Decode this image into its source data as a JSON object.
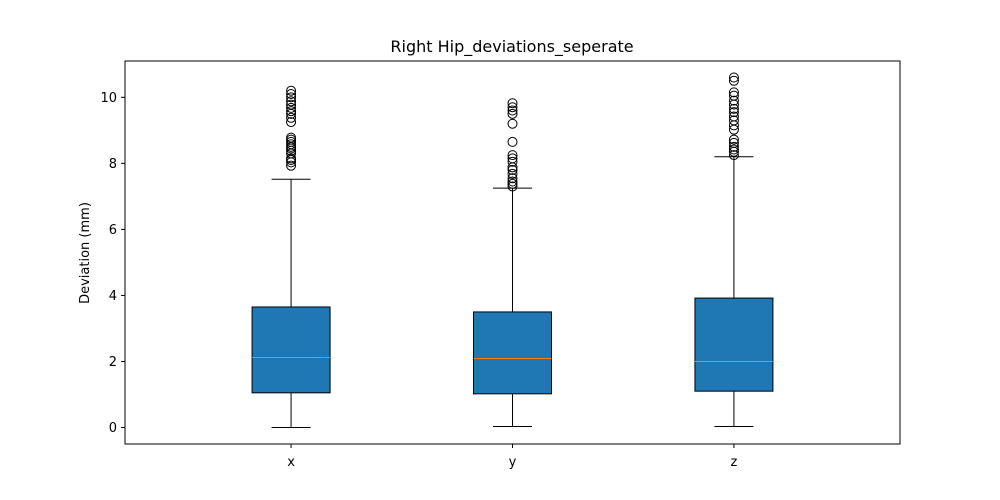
{
  "chart_data": {
    "type": "box",
    "title": "Right Hip_deviations_seperate",
    "xlabel": "",
    "ylabel": "Deviation (mm)",
    "ylim": [
      -0.5,
      11.1
    ],
    "yticks": [
      0,
      2,
      4,
      6,
      8,
      10
    ],
    "grid": false,
    "colors": {
      "box_fill": "#1f77b4",
      "median": "#ff7f0e",
      "edge": "#000000"
    },
    "categories": [
      "x",
      "y",
      "z"
    ],
    "boxes": [
      {
        "label": "x",
        "whisker_low": 0.0,
        "q1": 1.05,
        "median": 2.12,
        "q3": 3.65,
        "whisker_high": 7.52,
        "outliers": [
          7.93,
          8.03,
          8.1,
          8.15,
          8.3,
          8.38,
          8.45,
          8.5,
          8.58,
          8.65,
          8.72,
          8.78,
          9.25,
          9.38,
          9.5,
          9.58,
          9.68,
          9.78,
          9.88,
          10.0,
          10.1,
          10.2
        ]
      },
      {
        "label": "y",
        "whisker_low": 0.03,
        "q1": 1.02,
        "median": 2.09,
        "q3": 3.5,
        "whisker_high": 7.25,
        "outliers": [
          7.3,
          7.38,
          7.45,
          7.55,
          7.68,
          7.8,
          7.88,
          8.05,
          8.15,
          8.25,
          8.65,
          9.2,
          9.5,
          9.6,
          9.7,
          9.82
        ]
      },
      {
        "label": "z",
        "whisker_low": 0.03,
        "q1": 1.1,
        "median": 2.0,
        "q3": 3.92,
        "whisker_high": 8.2,
        "outliers": [
          8.25,
          8.35,
          8.42,
          8.5,
          8.62,
          8.72,
          9.02,
          9.15,
          9.3,
          9.42,
          9.55,
          9.65,
          9.78,
          9.9,
          10.05,
          10.15,
          10.5,
          10.6
        ]
      }
    ]
  }
}
